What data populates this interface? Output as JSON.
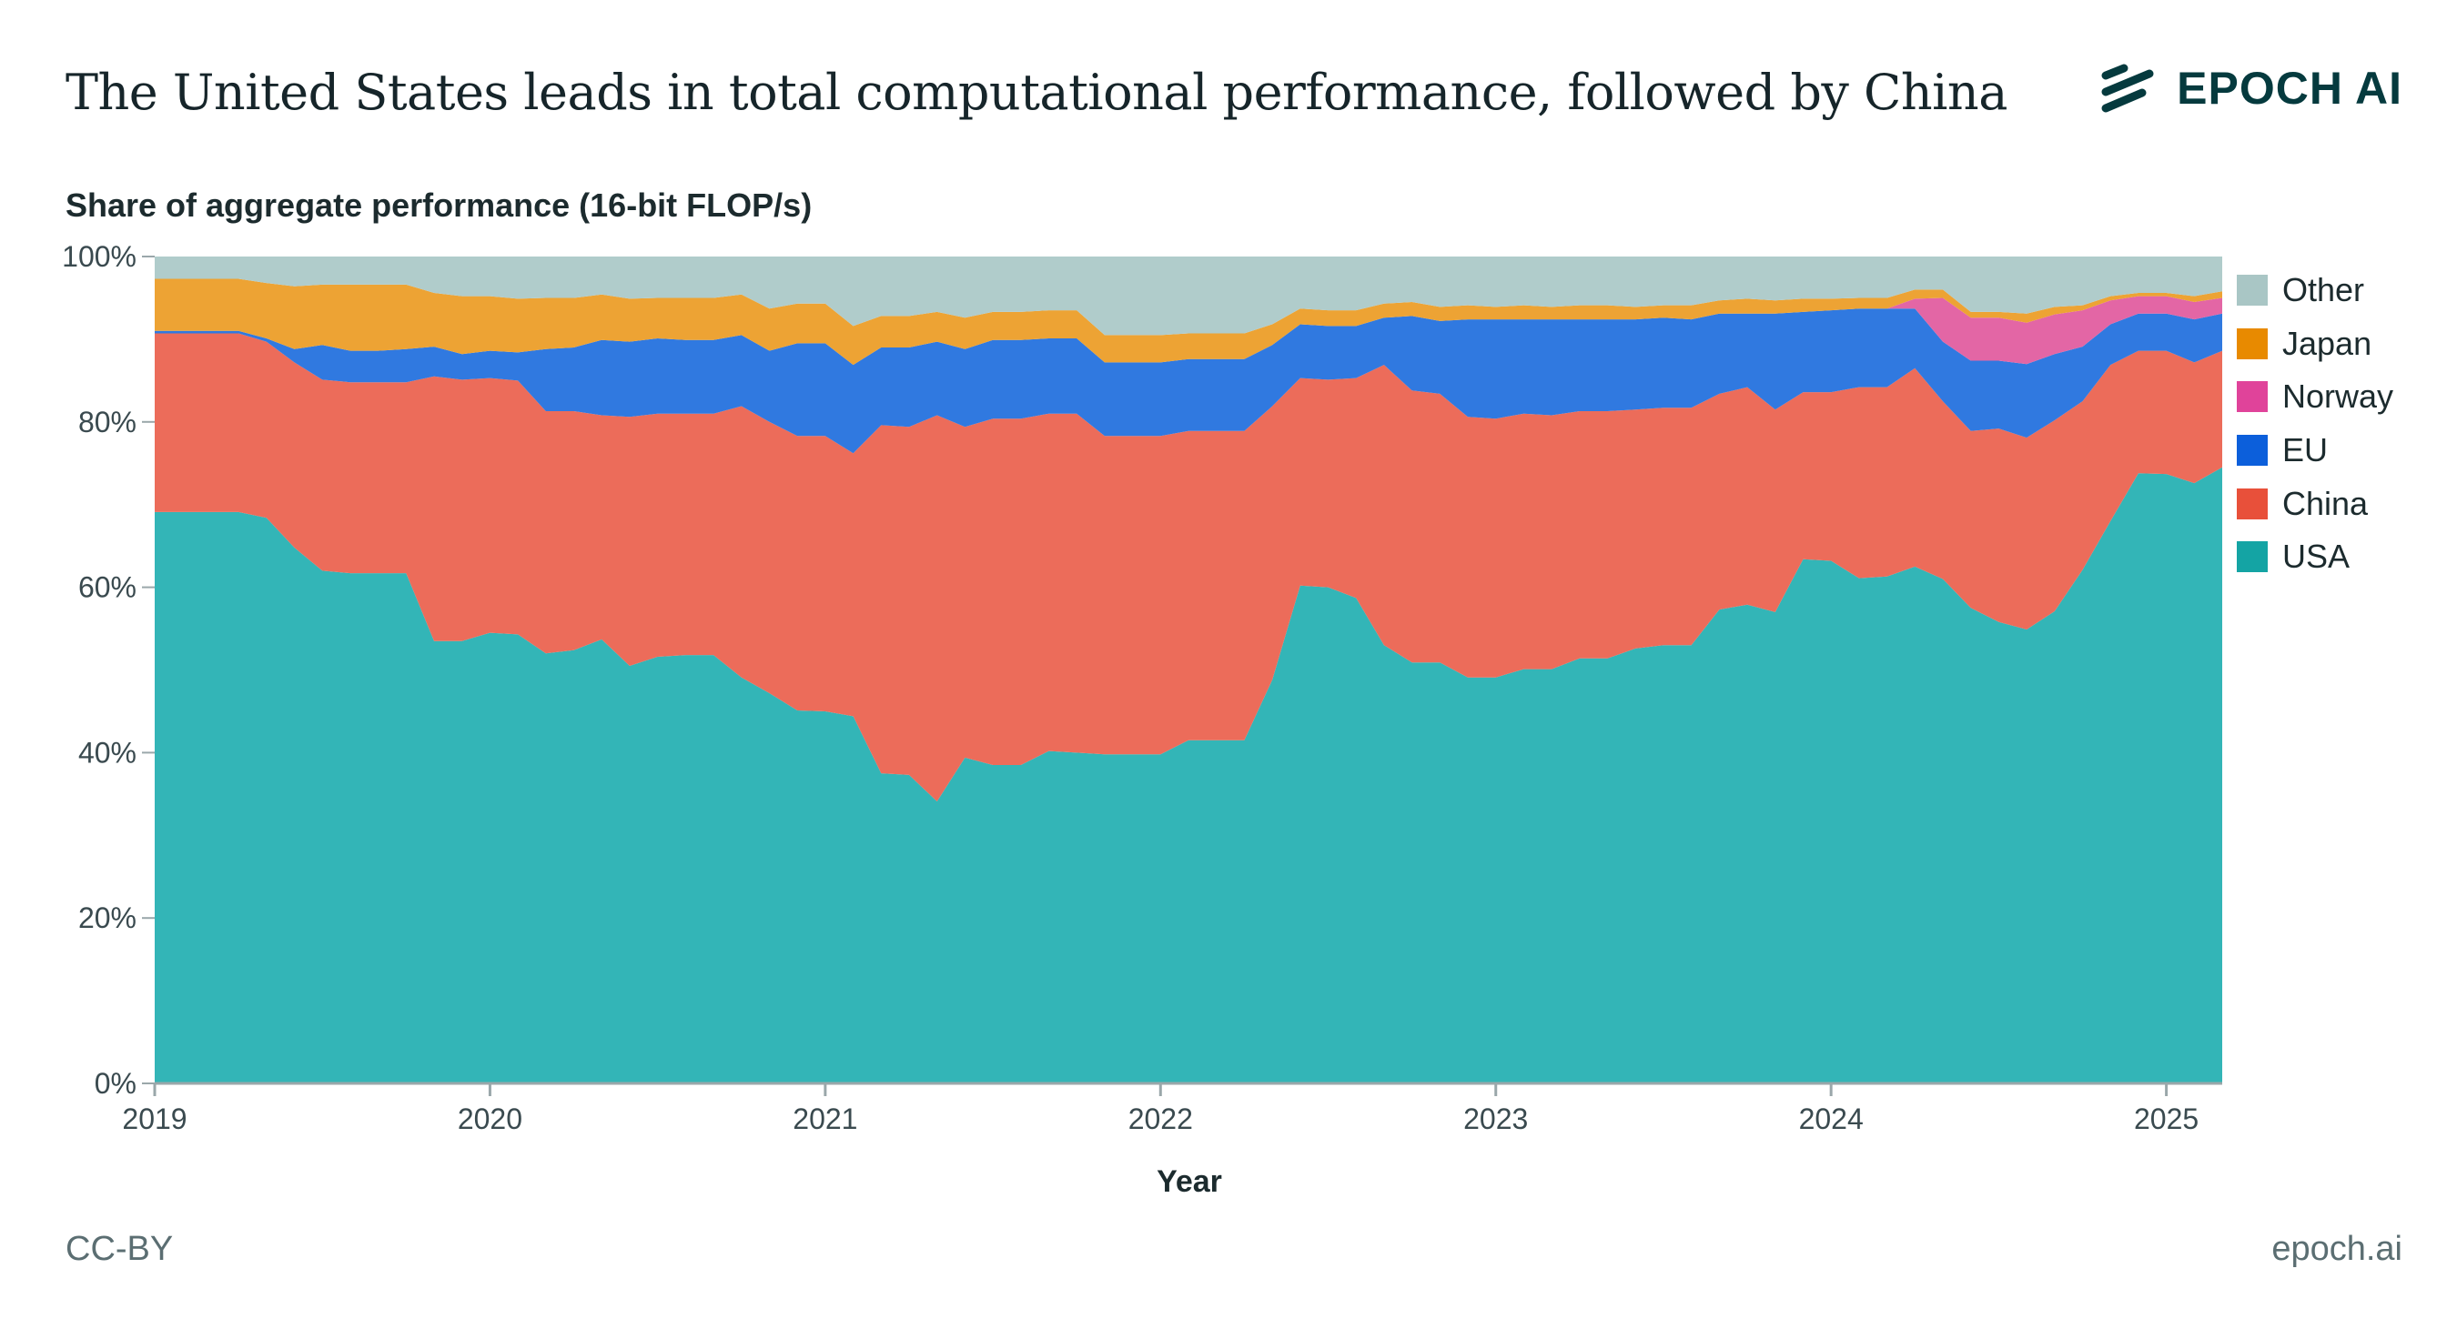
{
  "header": {
    "title": "The United States leads in total computational performance, followed by China",
    "logo_text": "EPOCH AI"
  },
  "footer": {
    "license": "CC-BY",
    "site": "epoch.ai"
  },
  "chart_data": {
    "type": "area",
    "stacked": true,
    "title": "The United States leads in total computational performance, followed by China",
    "ylabel": "Share of aggregate performance (16-bit FLOP/s)",
    "xlabel": "Year",
    "ylim": [
      0,
      100
    ],
    "xlim": [
      "2019-01",
      "2025-03"
    ],
    "y_ticks": [
      "0%",
      "20%",
      "40%",
      "60%",
      "80%",
      "100%"
    ],
    "y_tick_values": [
      0,
      20,
      40,
      60,
      80,
      100
    ],
    "x_ticks": [
      "2019",
      "2020",
      "2021",
      "2022",
      "2023",
      "2024",
      "2025"
    ],
    "grid": false,
    "legend_position": "right",
    "x": [
      "2019-01",
      "2019-02",
      "2019-03",
      "2019-04",
      "2019-05",
      "2019-06",
      "2019-07",
      "2019-08",
      "2019-09",
      "2019-10",
      "2019-11",
      "2019-12",
      "2020-01",
      "2020-02",
      "2020-03",
      "2020-04",
      "2020-05",
      "2020-06",
      "2020-07",
      "2020-08",
      "2020-09",
      "2020-10",
      "2020-11",
      "2020-12",
      "2021-01",
      "2021-02",
      "2021-03",
      "2021-04",
      "2021-05",
      "2021-06",
      "2021-07",
      "2021-08",
      "2021-09",
      "2021-10",
      "2021-11",
      "2021-12",
      "2022-01",
      "2022-02",
      "2022-03",
      "2022-04",
      "2022-05",
      "2022-06",
      "2022-07",
      "2022-08",
      "2022-09",
      "2022-10",
      "2022-11",
      "2022-12",
      "2023-01",
      "2023-02",
      "2023-03",
      "2023-04",
      "2023-05",
      "2023-06",
      "2023-07",
      "2023-08",
      "2023-09",
      "2023-10",
      "2023-11",
      "2023-12",
      "2024-01",
      "2024-02",
      "2024-03",
      "2024-04",
      "2024-05",
      "2024-06",
      "2024-07",
      "2024-08",
      "2024-09",
      "2024-10",
      "2024-11",
      "2024-12",
      "2025-01",
      "2025-02",
      "2025-03"
    ],
    "series": [
      {
        "name": "USA",
        "color": "#14a4a4",
        "fill": "#33b5b7",
        "values": [
          69.1,
          69.1,
          69.1,
          69.1,
          68.4,
          64.8,
          62.0,
          61.7,
          61.7,
          61.7,
          53.5,
          53.5,
          54.5,
          54.3,
          52.0,
          52.4,
          53.7,
          50.5,
          51.6,
          51.8,
          51.8,
          49.1,
          47.2,
          45.1,
          45.0,
          44.4,
          37.5,
          37.3,
          34.1,
          39.4,
          38.5,
          38.5,
          40.2,
          40.0,
          39.8,
          39.8,
          39.8,
          41.5,
          41.5,
          41.5,
          48.8,
          60.2,
          60.0,
          58.7,
          53.0,
          50.9,
          50.9,
          49.1,
          49.1,
          50.1,
          50.1,
          51.4,
          51.4,
          52.6,
          53.0,
          53.0,
          57.3,
          57.9,
          57.0,
          63.4,
          63.2,
          61.1,
          61.3,
          62.5,
          61.0,
          57.5,
          55.8,
          54.9,
          57.1,
          62.1,
          68.0,
          73.8,
          73.7,
          72.6,
          74.5
        ]
      },
      {
        "name": "China",
        "color": "#e8503a",
        "fill": "#ec6c5a",
        "values": [
          21.6,
          21.6,
          21.6,
          21.6,
          21.3,
          22.4,
          23.1,
          23.1,
          23.1,
          23.1,
          32.0,
          31.6,
          30.8,
          30.7,
          29.3,
          28.9,
          27.1,
          30.1,
          29.4,
          29.2,
          29.2,
          32.8,
          32.8,
          33.2,
          33.3,
          31.8,
          42.1,
          42.1,
          46.7,
          40.0,
          41.9,
          41.9,
          40.8,
          41.0,
          38.5,
          38.5,
          38.5,
          37.4,
          37.4,
          37.4,
          33.1,
          25.1,
          25.1,
          26.6,
          33.9,
          32.9,
          32.5,
          31.5,
          31.3,
          30.9,
          30.7,
          29.9,
          29.9,
          28.9,
          28.7,
          28.7,
          26.1,
          26.3,
          24.5,
          20.2,
          20.4,
          23.1,
          22.9,
          24.0,
          21.5,
          21.4,
          23.4,
          23.2,
          23.1,
          20.4,
          18.9,
          14.8,
          14.9,
          14.6,
          14.1
        ]
      },
      {
        "name": "EU",
        "color": "#0c5fdb",
        "fill": "#3079e0",
        "values": [
          0.3,
          0.3,
          0.3,
          0.3,
          0.4,
          1.6,
          4.2,
          3.8,
          3.8,
          4.0,
          3.6,
          3.1,
          3.3,
          3.4,
          7.5,
          7.7,
          9.1,
          9.1,
          9.1,
          8.9,
          8.9,
          8.6,
          8.6,
          11.2,
          11.2,
          10.7,
          9.4,
          9.6,
          8.9,
          9.4,
          9.5,
          9.5,
          9.1,
          9.1,
          8.9,
          8.9,
          8.9,
          8.7,
          8.7,
          8.7,
          7.4,
          6.5,
          6.5,
          6.3,
          5.7,
          9.0,
          8.8,
          11.8,
          12.0,
          11.4,
          11.6,
          11.1,
          11.1,
          10.9,
          10.9,
          10.7,
          9.7,
          8.9,
          11.6,
          9.7,
          9.9,
          9.5,
          9.5,
          7.2,
          7.2,
          8.5,
          8.2,
          8.9,
          8.0,
          6.6,
          4.9,
          4.5,
          4.5,
          5.2,
          4.5
        ]
      },
      {
        "name": "Norway",
        "color": "#e0439a",
        "fill": "#e366a5",
        "values": [
          0,
          0,
          0,
          0,
          0,
          0,
          0,
          0,
          0,
          0,
          0,
          0,
          0,
          0,
          0,
          0,
          0,
          0,
          0,
          0,
          0,
          0,
          0,
          0,
          0,
          0,
          0,
          0,
          0,
          0,
          0,
          0,
          0,
          0,
          0,
          0,
          0,
          0,
          0,
          0,
          0,
          0,
          0,
          0,
          0,
          0,
          0,
          0,
          0,
          0,
          0,
          0,
          0,
          0,
          0,
          0,
          0,
          0,
          0,
          0,
          0,
          0,
          0,
          1.2,
          5.3,
          5.2,
          5.2,
          5.0,
          4.8,
          4.4,
          2.9,
          2.1,
          2.1,
          2.1,
          1.9
        ]
      },
      {
        "name": "Japan",
        "color": "#e88a00",
        "fill": "#eda334",
        "values": [
          6.3,
          6.3,
          6.3,
          6.3,
          6.7,
          7.6,
          7.3,
          8.0,
          8.0,
          7.8,
          6.5,
          7.0,
          6.6,
          6.5,
          6.2,
          6.0,
          5.5,
          5.2,
          4.9,
          5.1,
          5.1,
          4.9,
          5.1,
          4.8,
          4.8,
          4.7,
          3.8,
          3.8,
          3.6,
          3.8,
          3.4,
          3.4,
          3.4,
          3.4,
          3.3,
          3.3,
          3.3,
          3.1,
          3.1,
          3.1,
          2.5,
          1.9,
          1.9,
          1.9,
          1.7,
          1.7,
          1.7,
          1.7,
          1.5,
          1.7,
          1.5,
          1.7,
          1.7,
          1.5,
          1.5,
          1.7,
          1.6,
          1.8,
          1.6,
          1.6,
          1.4,
          1.3,
          1.3,
          1.1,
          1.0,
          0.7,
          0.7,
          1.1,
          0.9,
          0.6,
          0.5,
          0.4,
          0.4,
          0.7,
          0.8
        ]
      },
      {
        "name": "Other",
        "color": "#a9c6c5",
        "fill": "#b0cccb",
        "values": [
          2.7,
          2.7,
          2.7,
          2.7,
          3.2,
          3.6,
          3.4,
          3.4,
          3.4,
          3.4,
          4.4,
          4.8,
          4.8,
          5.1,
          5.0,
          5.0,
          4.6,
          5.1,
          5.0,
          5.0,
          5.0,
          4.6,
          6.3,
          5.7,
          5.7,
          8.4,
          7.2,
          7.2,
          6.7,
          7.4,
          6.7,
          6.7,
          6.5,
          6.5,
          9.5,
          9.5,
          9.5,
          9.3,
          9.3,
          9.3,
          8.2,
          6.3,
          6.5,
          6.5,
          5.7,
          5.5,
          6.1,
          5.9,
          6.1,
          5.9,
          6.1,
          5.9,
          5.9,
          6.1,
          5.9,
          5.9,
          5.3,
          5.1,
          5.3,
          5.1,
          5.1,
          5.0,
          5.0,
          4.0,
          4.0,
          6.7,
          6.7,
          6.9,
          6.1,
          5.9,
          4.8,
          4.4,
          4.4,
          4.8,
          4.2
        ]
      }
    ],
    "legend_order": [
      "Other",
      "Japan",
      "Norway",
      "EU",
      "China",
      "USA"
    ]
  }
}
